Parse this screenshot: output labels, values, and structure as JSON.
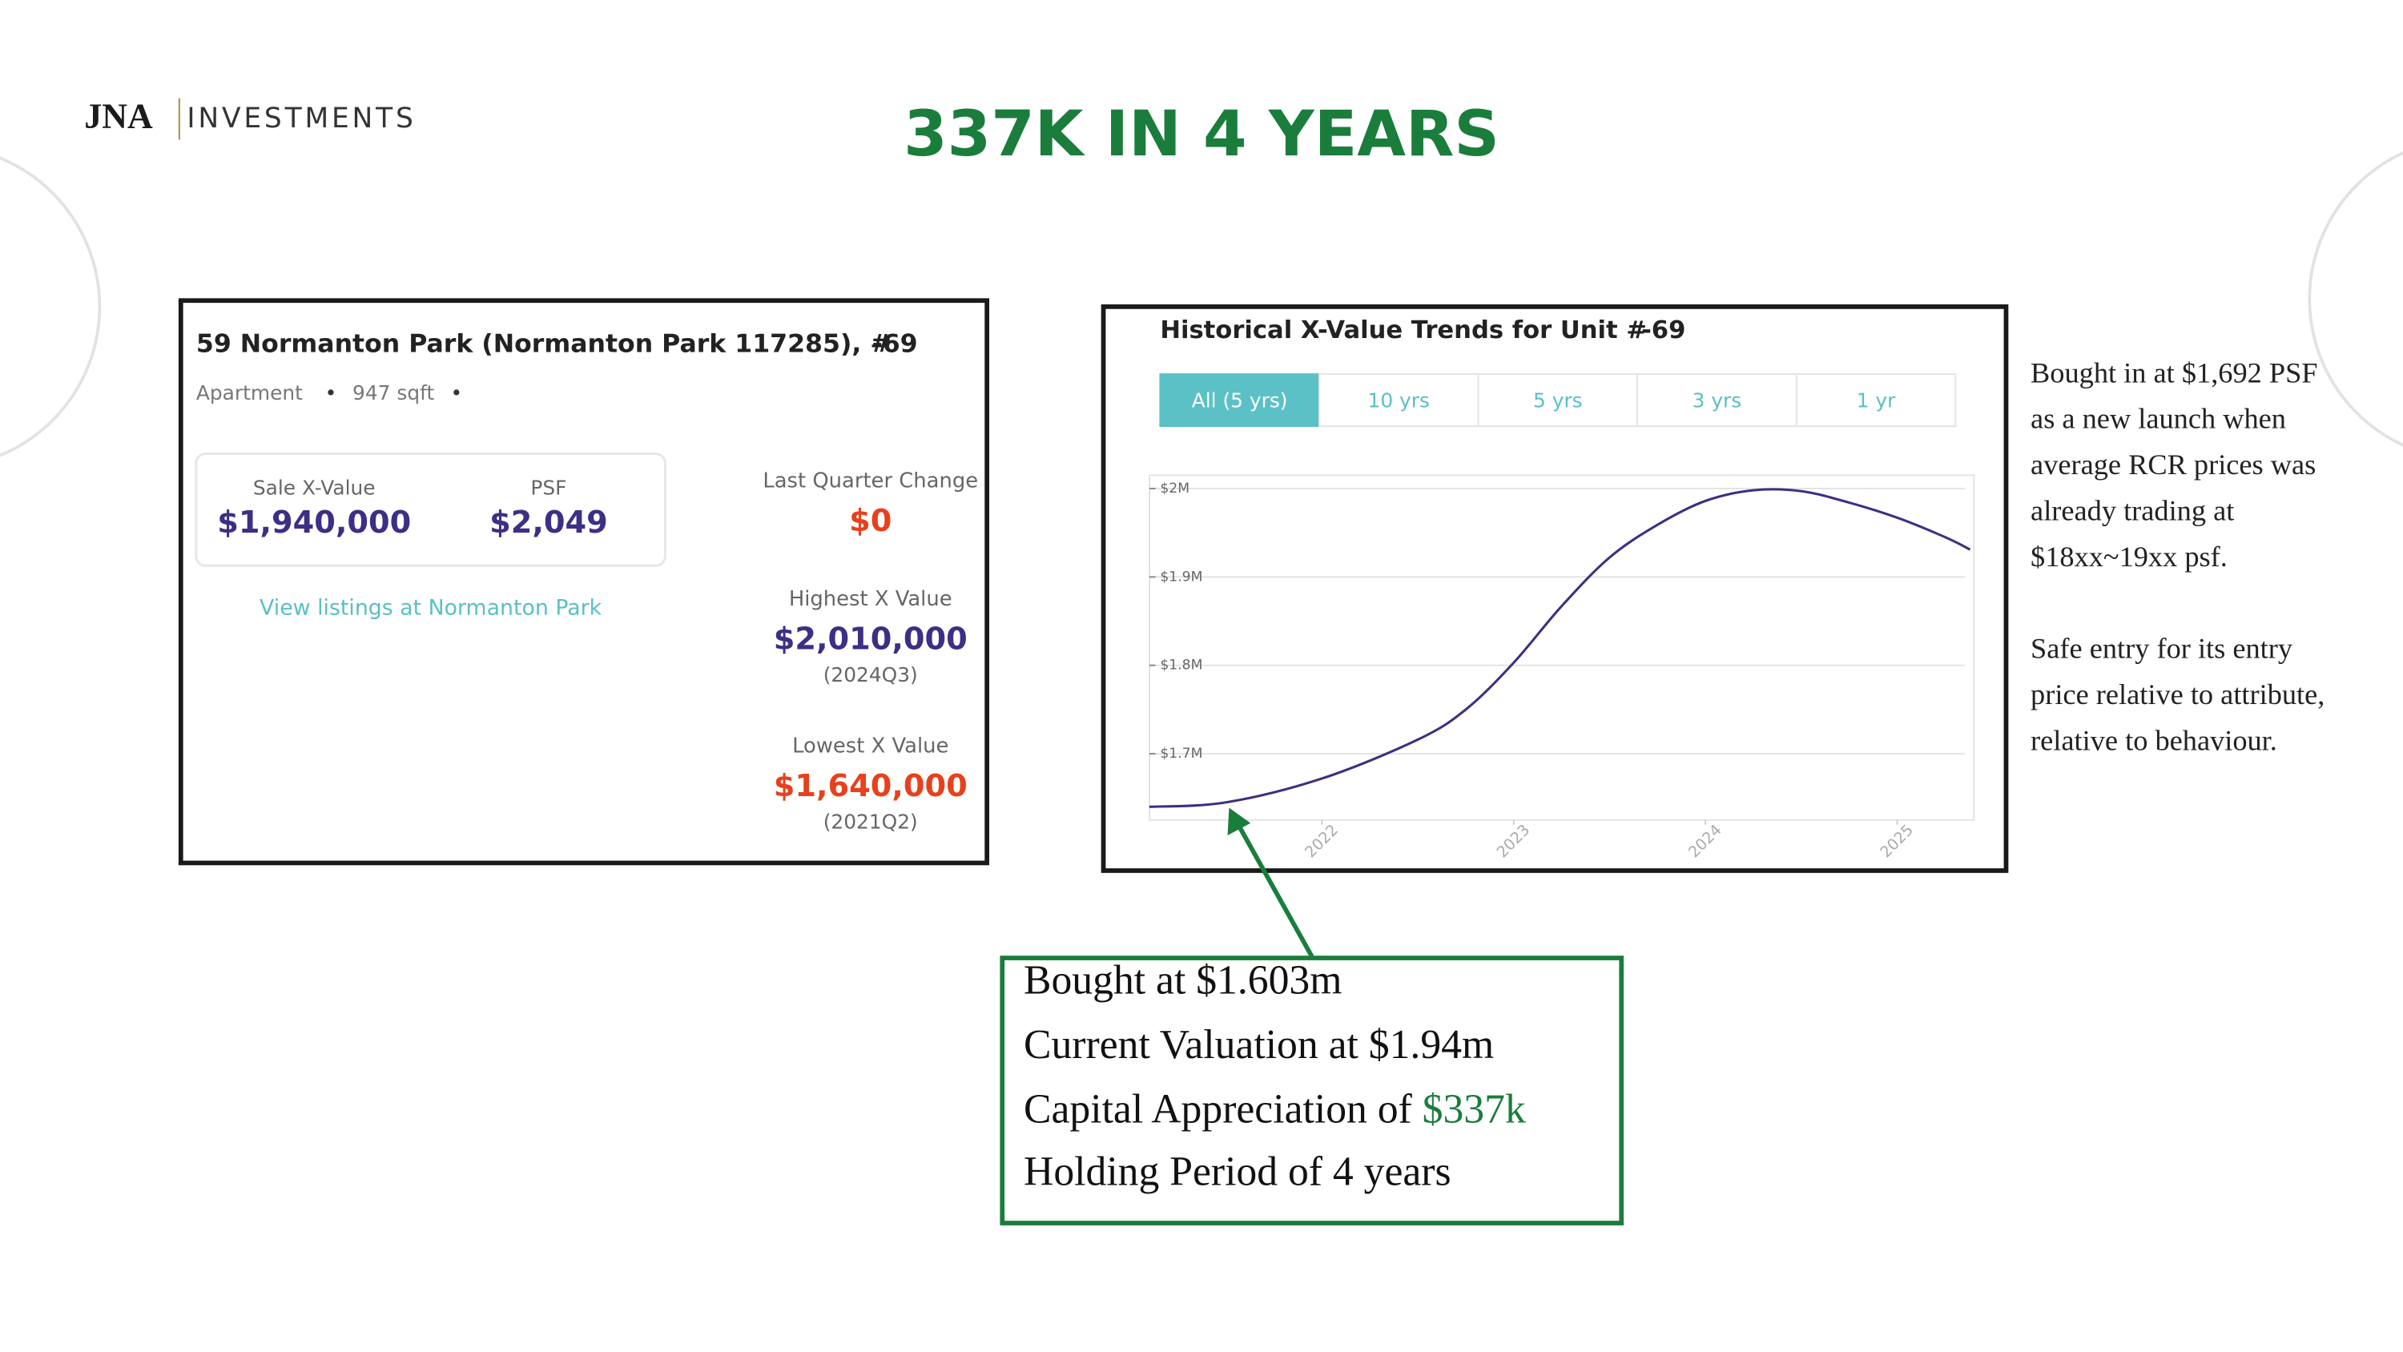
{
  "header": {
    "logo_mark": "JNA",
    "logo_text": "INVESTMENTS",
    "title": "337K IN 4 YEARS"
  },
  "left_card": {
    "title": "59 Normanton Park (Normanton Park 117285), #",
    "unit_suffix": "-69",
    "meta": [
      "Apartment",
      "•",
      "947 sqft",
      "•"
    ],
    "stats": [
      {
        "label": "Sale X-Value",
        "value": "$1,940,000"
      },
      {
        "label": "PSF",
        "value": "$2,049"
      }
    ],
    "link": "View listings at Normanton Park",
    "side": [
      {
        "label": "Last Quarter Change",
        "value": "$0"
      },
      {
        "label": "Highest X Value",
        "value": "$2,010,000",
        "note": "(2024Q3)"
      },
      {
        "label": "Lowest X Value",
        "value": "$1,640,000",
        "note": "(2021Q2)"
      }
    ]
  },
  "chart_card": {
    "title": "Historical X-Value Trends for Unit #",
    "unit_suffix": "-69",
    "tabs": [
      "All (5 yrs)",
      "10 yrs",
      "5 yrs",
      "3 yrs",
      "1 yr"
    ],
    "chart": {
      "type": "line",
      "x": [
        2021.1,
        2021.5,
        2022,
        2022.5,
        2022.75,
        2023,
        2023.25,
        2023.5,
        2023.75,
        2024,
        2024.25,
        2024.5,
        2024.75,
        2025,
        2025.25,
        2025.38
      ],
      "values": [
        1640000,
        1645000,
        1672000,
        1716000,
        1750000,
        1803000,
        1867000,
        1922000,
        1959000,
        1986000,
        1998000,
        1997000,
        1984000,
        1967000,
        1945000,
        1931000
      ],
      "color": "#3d2f80",
      "xlim": [
        2021.1,
        2025.4
      ],
      "ylim": [
        1625000,
        2015000
      ],
      "xticks": [
        2022,
        2023,
        2024,
        2025
      ],
      "yticks": [
        {
          "value": 1700000,
          "label": "$1.7M"
        },
        {
          "value": 1800000,
          "label": "$1.8M"
        },
        {
          "value": 1900000,
          "label": "$1.9M"
        },
        {
          "value": 2000000,
          "label": "$2M"
        }
      ],
      "grid": true
    }
  },
  "callout": {
    "lines": [
      "Bought at $1.603m",
      "Current Valuation at $1.94m",
      "Capital Appreciation of ",
      "Holding Period of 4 years"
    ],
    "highlight": "$337k"
  },
  "notes": [
    [
      "Bought in at $1,692 PSF",
      "as a new launch when",
      "average RCR prices was",
      "already trading at",
      "$18xx~19xx psf."
    ],
    [
      "Safe entry for its entry",
      "price relative to attribute,",
      "relative to behaviour."
    ]
  ]
}
